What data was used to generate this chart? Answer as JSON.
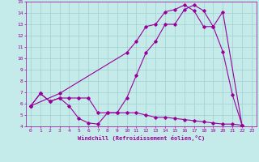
{
  "xlabel": "Windchill (Refroidissement éolien,°C)",
  "xlim": [
    -0.5,
    23.5
  ],
  "ylim": [
    4,
    15
  ],
  "xticks": [
    0,
    1,
    2,
    3,
    4,
    5,
    6,
    7,
    8,
    9,
    10,
    11,
    12,
    13,
    14,
    15,
    16,
    17,
    18,
    19,
    20,
    21,
    22,
    23
  ],
  "yticks": [
    4,
    5,
    6,
    7,
    8,
    9,
    10,
    11,
    12,
    13,
    14,
    15
  ],
  "bg_color": "#c5eaea",
  "line_color": "#990099",
  "grid_color": "#a0d0d0",
  "line1_x": [
    0,
    1,
    2,
    3,
    4,
    5,
    6,
    7,
    8,
    9,
    10,
    11,
    12,
    13,
    14,
    15,
    16,
    17,
    18,
    19,
    20,
    21,
    22
  ],
  "line1_y": [
    5.8,
    6.9,
    6.2,
    6.5,
    5.8,
    4.7,
    4.3,
    4.2,
    5.2,
    5.2,
    6.5,
    8.5,
    10.5,
    11.5,
    13.0,
    13.0,
    14.3,
    14.7,
    14.2,
    12.8,
    10.6,
    6.8,
    4.1
  ],
  "line2_x": [
    0,
    1,
    2,
    3,
    4,
    5,
    6,
    7,
    8,
    9,
    10,
    11,
    12,
    13,
    14,
    15,
    16,
    17,
    18,
    19,
    20,
    21,
    22
  ],
  "line2_y": [
    5.8,
    6.9,
    6.2,
    6.5,
    6.5,
    6.5,
    6.5,
    5.2,
    5.2,
    5.2,
    5.2,
    5.2,
    5.0,
    4.8,
    4.8,
    4.7,
    4.6,
    4.5,
    4.4,
    4.3,
    4.2,
    4.2,
    4.1
  ],
  "line3_x": [
    0,
    3,
    10,
    11,
    12,
    13,
    14,
    15,
    16,
    17,
    18,
    19,
    20,
    22
  ],
  "line3_y": [
    5.8,
    6.9,
    10.5,
    11.5,
    12.8,
    13.0,
    14.1,
    14.3,
    14.7,
    14.2,
    12.8,
    12.8,
    14.1,
    4.1
  ]
}
